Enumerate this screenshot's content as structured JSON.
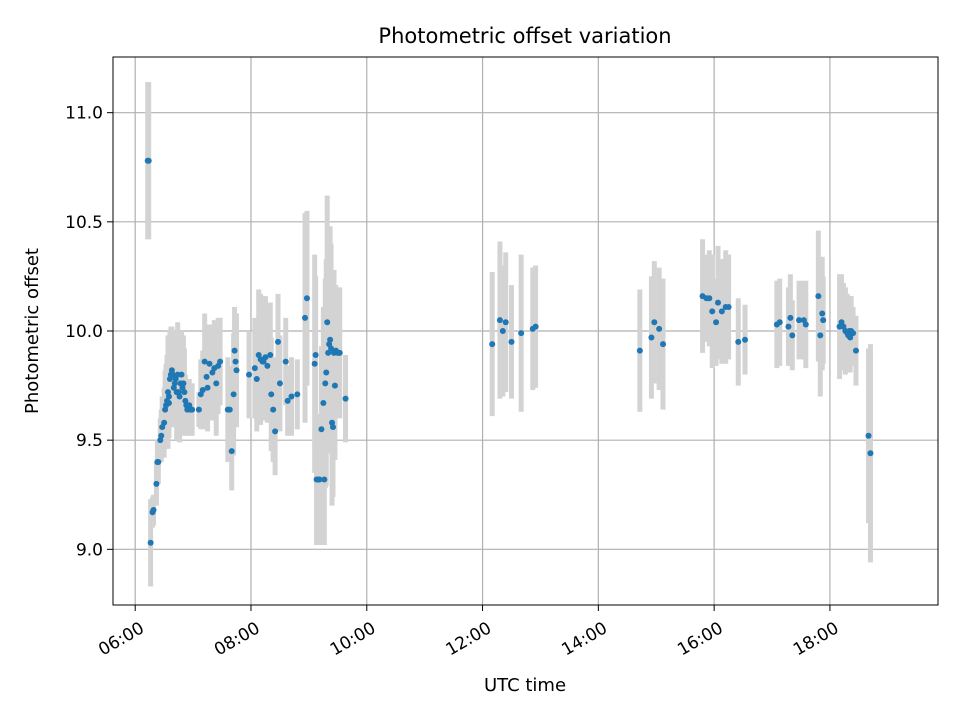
{
  "chart_data": {
    "type": "scatter",
    "title": "Photometric offset variation",
    "xlabel": "UTC time",
    "ylabel": "Photometric offset",
    "x_format": "HH:MM",
    "xlim": [
      "05:37",
      "19:52"
    ],
    "ylim": [
      8.745,
      11.255
    ],
    "x_ticks": [
      "06:00",
      "08:00",
      "10:00",
      "12:00",
      "14:00",
      "16:00",
      "18:00"
    ],
    "y_ticks": [
      9.0,
      9.5,
      10.0,
      10.5,
      11.0
    ],
    "y_tick_labels": [
      "9.0",
      "9.5",
      "10.0",
      "10.5",
      "11.0"
    ],
    "grid": true,
    "legend": false,
    "colors": {
      "points": "#1f77b4",
      "errorbars": "#d3d3d3",
      "grid": "#b0b0b0",
      "axes": "#000000"
    },
    "series": [
      {
        "x": [
          "06:13",
          "06:14",
          "06:16",
          "06:18",
          "06:19",
          "06:22",
          "06:23",
          "06:24",
          "06:26",
          "06:27",
          "06:28",
          "06:30",
          "06:31",
          "06:32",
          "06:33",
          "06:34",
          "06:35",
          "06:35",
          "06:36",
          "06:37",
          "06:38",
          "06:39",
          "06:40",
          "06:41",
          "06:42",
          "06:43",
          "06:44",
          "06:45",
          "06:46",
          "06:47",
          "06:48",
          "06:49",
          "06:50",
          "06:51",
          "06:52",
          "06:53",
          "06:54",
          "06:55",
          "06:56",
          "06:57",
          "06:58",
          "06:59",
          "07:06",
          "07:08",
          "07:10",
          "07:12",
          "07:14",
          "07:15",
          "07:17",
          "07:20",
          "07:22",
          "07:24",
          "07:26",
          "07:28",
          "07:36",
          "07:38",
          "07:40",
          "07:42",
          "07:43",
          "07:44",
          "07:45",
          "07:58",
          "08:04",
          "08:06",
          "08:08",
          "08:10",
          "08:12",
          "08:13",
          "08:15",
          "08:17",
          "08:20",
          "08:21",
          "08:23",
          "08:25",
          "08:28",
          "08:30",
          "08:36",
          "08:38",
          "08:42",
          "08:48",
          "08:56",
          "08:58",
          "09:06",
          "09:07",
          "09:08",
          "09:10",
          "09:11",
          "09:13",
          "09:15",
          "09:16",
          "09:17",
          "09:18",
          "09:19",
          "09:20",
          "09:21",
          "09:22",
          "09:23",
          "09:24",
          "09:25",
          "09:26",
          "09:27",
          "09:28",
          "09:30",
          "09:32",
          "09:38",
          "12:10",
          "12:18",
          "12:21",
          "12:24",
          "12:30",
          "12:40",
          "12:52",
          "12:55",
          "14:43",
          "14:55",
          "14:58",
          "15:03",
          "15:07",
          "15:48",
          "15:52",
          "15:55",
          "15:58",
          "16:02",
          "16:04",
          "16:08",
          "16:12",
          "16:15",
          "16:25",
          "16:32",
          "17:05",
          "17:08",
          "17:17",
          "17:19",
          "17:21",
          "17:28",
          "17:33",
          "17:35",
          "17:48",
          "17:50",
          "17:52",
          "17:53",
          "18:10",
          "18:12",
          "18:14",
          "18:16",
          "18:18",
          "18:19",
          "18:20",
          "18:21",
          "18:22",
          "18:24",
          "18:27",
          "18:40",
          "18:42"
        ],
        "y": [
          10.78,
          10.78,
          9.03,
          9.17,
          9.18,
          9.3,
          9.4,
          9.4,
          9.5,
          9.52,
          9.56,
          9.58,
          9.64,
          9.66,
          9.68,
          9.72,
          9.67,
          9.7,
          9.78,
          9.8,
          9.82,
          9.8,
          9.74,
          9.76,
          9.78,
          9.72,
          9.8,
          9.72,
          9.7,
          9.76,
          9.8,
          9.74,
          9.76,
          9.72,
          9.68,
          9.66,
          9.64,
          9.65,
          9.66,
          9.64,
          9.64,
          9.64,
          9.64,
          9.71,
          9.73,
          9.86,
          9.79,
          9.74,
          9.85,
          9.81,
          9.83,
          9.76,
          9.84,
          9.86,
          9.64,
          9.64,
          9.45,
          9.71,
          9.91,
          9.86,
          9.82,
          9.8,
          9.83,
          9.78,
          9.89,
          9.87,
          9.86,
          9.86,
          9.88,
          9.84,
          9.89,
          9.71,
          9.64,
          9.54,
          9.95,
          9.76,
          9.86,
          9.68,
          9.7,
          9.71,
          10.06,
          10.15,
          9.85,
          9.89,
          9.32,
          9.32,
          9.32,
          9.55,
          9.67,
          9.32,
          9.76,
          9.81,
          10.04,
          9.9,
          9.94,
          9.96,
          9.92,
          9.58,
          9.56,
          9.9,
          9.75,
          9.91,
          9.9,
          9.9,
          9.69,
          9.94,
          10.05,
          10.0,
          10.04,
          9.95,
          9.99,
          10.01,
          10.02,
          9.91,
          9.97,
          10.04,
          10.01,
          9.94,
          10.16,
          10.15,
          10.15,
          10.09,
          10.04,
          10.13,
          10.09,
          10.11,
          10.11,
          9.95,
          9.96,
          10.03,
          10.04,
          10.02,
          10.06,
          9.98,
          10.05,
          10.05,
          10.03,
          10.16,
          9.98,
          10.08,
          10.05,
          10.02,
          10.04,
          10.02,
          10.0,
          9.99,
          9.98,
          10.0,
          9.97,
          10.0,
          9.99,
          9.91,
          9.52,
          9.44
        ],
        "yerr": [
          0.36,
          0.36,
          0.2,
          0.07,
          0.07,
          0.1,
          0.1,
          0.1,
          0.1,
          0.12,
          0.14,
          0.16,
          0.18,
          0.19,
          0.21,
          0.26,
          0.16,
          0.18,
          0.22,
          0.22,
          0.2,
          0.2,
          0.18,
          0.2,
          0.22,
          0.22,
          0.24,
          0.22,
          0.21,
          0.18,
          0.2,
          0.2,
          0.22,
          0.2,
          0.12,
          0.12,
          0.12,
          0.12,
          0.12,
          0.12,
          0.12,
          0.12,
          0.08,
          0.16,
          0.18,
          0.22,
          0.22,
          0.2,
          0.18,
          0.22,
          0.22,
          0.24,
          0.22,
          0.2,
          0.24,
          0.2,
          0.18,
          0.28,
          0.2,
          0.22,
          0.26,
          0.2,
          0.23,
          0.24,
          0.3,
          0.3,
          0.27,
          0.27,
          0.28,
          0.26,
          0.24,
          0.26,
          0.24,
          0.2,
          0.22,
          0.22,
          0.2,
          0.16,
          0.18,
          0.16,
          0.48,
          0.4,
          0.5,
          0.36,
          0.3,
          0.3,
          0.3,
          0.38,
          0.44,
          0.3,
          0.48,
          0.52,
          0.58,
          0.4,
          0.46,
          0.52,
          0.48,
          0.38,
          0.32,
          0.38,
          0.34,
          0.3,
          0.28,
          0.3,
          0.2,
          0.33,
          0.36,
          0.3,
          0.32,
          0.26,
          0.36,
          0.28,
          0.28,
          0.28,
          0.28,
          0.28,
          0.28,
          0.3,
          0.26,
          0.2,
          0.22,
          0.26,
          0.2,
          0.26,
          0.24,
          0.26,
          0.24,
          0.2,
          0.16,
          0.2,
          0.2,
          0.18,
          0.2,
          0.16,
          0.18,
          0.18,
          0.2,
          0.3,
          0.28,
          0.26,
          0.2,
          0.24,
          0.22,
          0.2,
          0.2,
          0.18,
          0.16,
          0.16,
          0.16,
          0.16,
          0.12,
          0.16,
          0.4,
          0.5
        ]
      }
    ]
  }
}
